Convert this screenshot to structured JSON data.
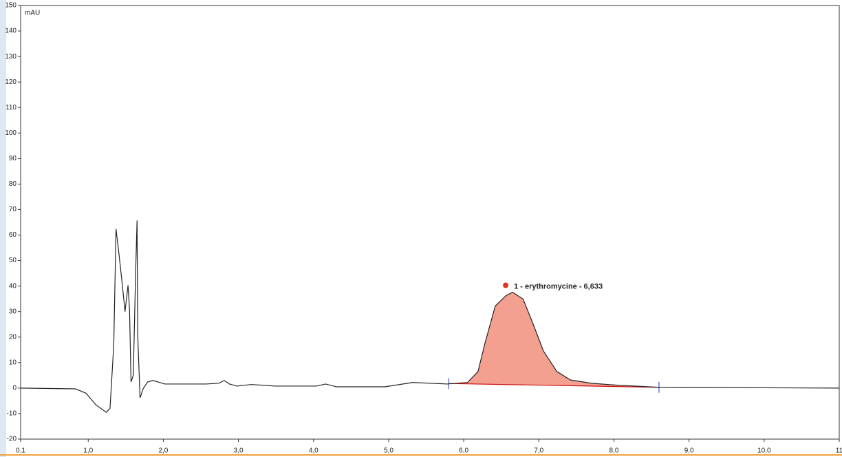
{
  "chart_data": {
    "type": "line",
    "y_label": "mAU",
    "annotation": "1 - erythromycine - 6,633",
    "x": [
      0.1,
      0.83,
      0.97,
      1.1,
      1.24,
      1.29,
      1.34,
      1.37,
      1.41,
      1.45,
      1.49,
      1.53,
      1.55,
      1.57,
      1.6,
      1.63,
      1.65,
      1.66,
      1.69,
      1.73,
      1.79,
      1.86,
      2.02,
      2.57,
      2.74,
      2.81,
      2.88,
      2.98,
      3.17,
      3.49,
      4.04,
      4.16,
      4.31,
      4.95,
      5.32,
      5.78,
      6.05,
      6.19,
      6.28,
      6.42,
      6.56,
      6.65,
      6.79,
      6.92,
      7.06,
      7.24,
      7.42,
      7.7,
      8.07,
      8.61,
      11.0
    ],
    "values": [
      0,
      -0.3,
      -2,
      -6.5,
      -9.5,
      -8,
      17,
      62.4,
      52.4,
      41.6,
      30,
      40.3,
      30.8,
      2.4,
      5,
      44,
      65.7,
      20,
      -3.8,
      -0.3,
      2.4,
      3,
      1.6,
      1.6,
      1.9,
      3,
      1.6,
      0.8,
      1.4,
      0.8,
      0.8,
      1.6,
      0.5,
      0.5,
      2.2,
      1.6,
      2.2,
      6.5,
      17.3,
      32.2,
      36.2,
      37.6,
      34.9,
      25.4,
      14.6,
      6.5,
      3.2,
      1.9,
      1.1,
      0.3,
      0
    ],
    "color": "#222222",
    "peak_color": "#f4a090",
    "baseline": {
      "x": [
        5.8,
        8.6
      ],
      "y": [
        1.8,
        0.3
      ],
      "color": "#cc1111"
    },
    "xlim": [
      0.1,
      11.0
    ],
    "xticks": [
      {
        "value": 0.1,
        "label": "0,1"
      },
      {
        "value": 1,
        "label": "1,0"
      },
      {
        "value": 2,
        "label": "2,0"
      },
      {
        "value": 3,
        "label": "3,0"
      },
      {
        "value": 4,
        "label": "4,0"
      },
      {
        "value": 5,
        "label": "5,0"
      },
      {
        "value": 6,
        "label": "6,0"
      },
      {
        "value": 7,
        "label": "7,0"
      },
      {
        "value": 8,
        "label": "8,0"
      },
      {
        "value": 9,
        "label": "9,0"
      },
      {
        "value": 10,
        "label": "10,0"
      },
      11
    ],
    "ylim": [
      -20,
      150
    ],
    "yticks": [
      -20,
      -10,
      0,
      10,
      20,
      30,
      40,
      50,
      60,
      70,
      80,
      90,
      100,
      110,
      120,
      130,
      140,
      150
    ]
  }
}
